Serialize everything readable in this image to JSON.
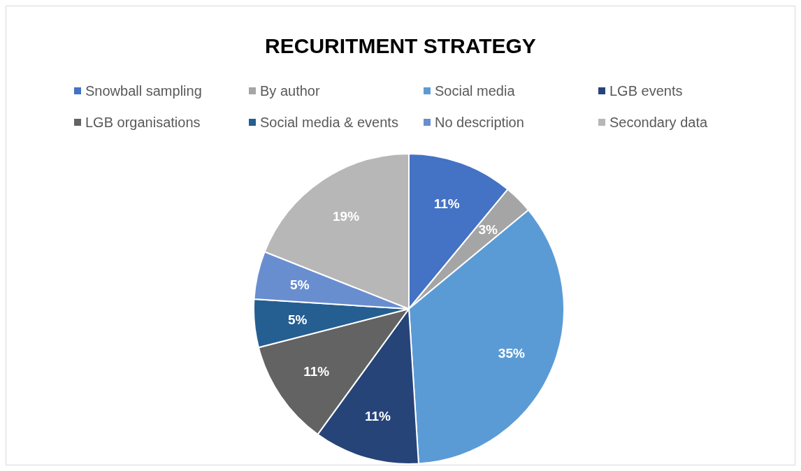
{
  "chart_data": {
    "type": "pie",
    "title": "RECURITMENT STRATEGY",
    "categories": [
      "Snowball sampling",
      "By author",
      "Social media",
      "LGB events",
      "LGB organisations",
      "Social media & events",
      "No description",
      "Secondary data"
    ],
    "values": [
      11,
      3,
      35,
      11,
      11,
      5,
      5,
      19
    ],
    "colors": [
      "#4472c4",
      "#a5a5a5",
      "#5b9bd5",
      "#264478",
      "#636363",
      "#255e91",
      "#698ed0",
      "#b7b7b7"
    ],
    "value_labels": [
      "11%",
      "3%",
      "35%",
      "11%",
      "11%",
      "5%",
      "5%",
      "19%"
    ],
    "legend": "top"
  }
}
